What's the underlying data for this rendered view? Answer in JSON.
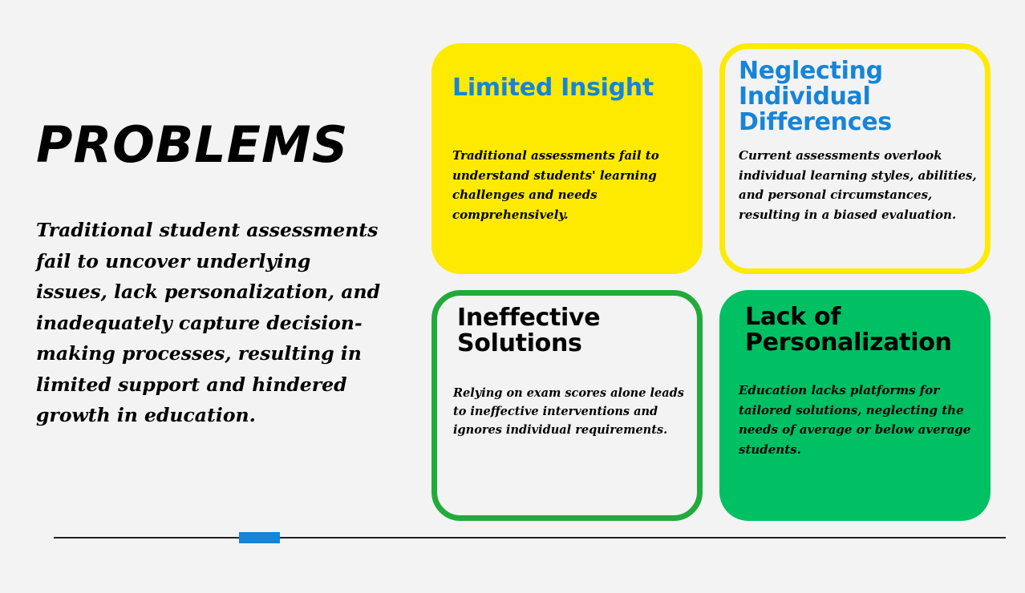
{
  "slide": {
    "title": "PROBLEMS",
    "summary": "Traditional student assessments fail to uncover underlying issues, lack personalization, and inadequately capture decision-making processes, resulting in limited support and hindered growth in education."
  },
  "cards": [
    {
      "title": "Limited Insight",
      "text": "Traditional assessments fail to understand students' learning challenges and needs comprehensively."
    },
    {
      "title": "Neglecting\nIndividual\nDifferences",
      "text": "Current assessments overlook individual learning styles, abilities, and personal circumstances, resulting in a biased evaluation."
    },
    {
      "title": "Ineffective\nSolutions",
      "text": "Relying on exam scores alone leads to ineffective interventions and ignores individual requirements."
    },
    {
      "title": "Lack of\nPersonalization",
      "text": "Education lacks platforms for tailored solutions, neglecting the needs of average or below average students."
    }
  ],
  "colors": {
    "background": "#f3f3f3",
    "yellow": "#fdea00",
    "blue": "#1684d8",
    "green_border": "#22aa3c",
    "green_fill": "#00c064"
  }
}
